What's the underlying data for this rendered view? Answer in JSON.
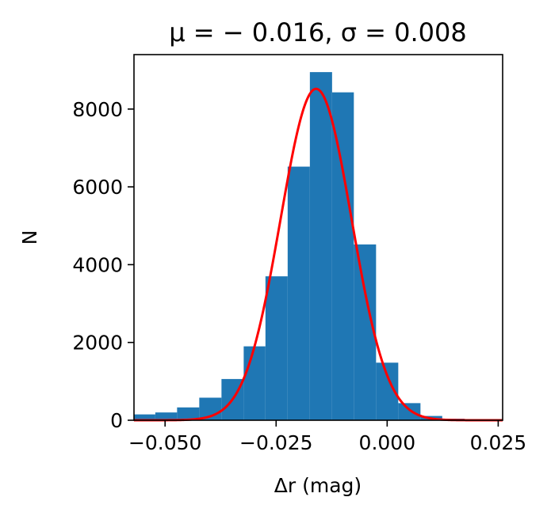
{
  "chart_data": {
    "type": "bar",
    "title": "μ = − 0.016, σ = 0.008",
    "xlabel": "Δr (mag)",
    "ylabel": "N",
    "xlim": [
      -0.057,
      0.026
    ],
    "ylim": [
      0,
      9400
    ],
    "x_ticks": [
      {
        "value": -0.05,
        "label": "−0.050"
      },
      {
        "value": -0.025,
        "label": "−0.025"
      },
      {
        "value": 0.0,
        "label": "0.000"
      },
      {
        "value": 0.025,
        "label": "0.025"
      }
    ],
    "y_ticks": [
      {
        "value": 0,
        "label": "0"
      },
      {
        "value": 2000,
        "label": "2000"
      },
      {
        "value": 4000,
        "label": "4000"
      },
      {
        "value": 6000,
        "label": "6000"
      },
      {
        "value": 8000,
        "label": "8000"
      }
    ],
    "bin_edges": [
      -0.0572,
      -0.0522,
      -0.0473,
      -0.0423,
      -0.0373,
      -0.0323,
      -0.0274,
      -0.0224,
      -0.0174,
      -0.0124,
      -0.0075,
      -0.0025,
      0.0025,
      0.0075,
      0.0124,
      0.0174,
      0.0224,
      0.0274
    ],
    "counts": [
      150,
      200,
      330,
      580,
      1060,
      1900,
      3700,
      6520,
      8950,
      8430,
      4520,
      1480,
      440,
      110,
      40,
      15,
      10
    ],
    "bar_color": "#1f77b4",
    "fit": {
      "type": "gaussian",
      "mu": -0.016,
      "sigma": 0.008,
      "amplitude": 8520,
      "color": "#ff0000"
    },
    "grid": false,
    "legend": "none"
  }
}
